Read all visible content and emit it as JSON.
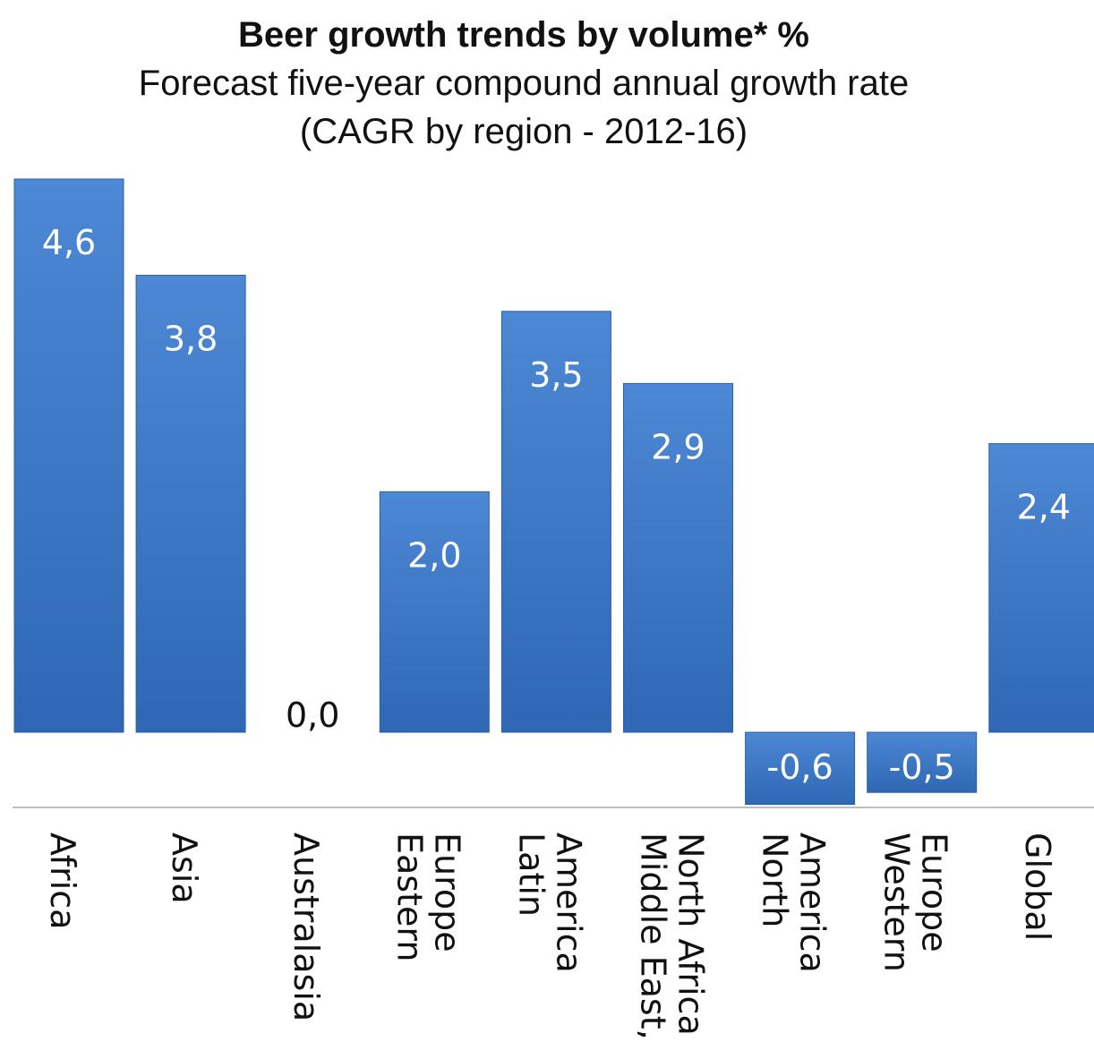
{
  "chart_data": {
    "type": "bar",
    "title": "Beer growth trends by volume* %",
    "subtitle": [
      "Forecast five-year compound annual growth rate",
      "(CAGR by region - 2012-16)"
    ],
    "categories": [
      [
        "Africa"
      ],
      [
        "Asia"
      ],
      [
        "Australasia"
      ],
      [
        "Eastern",
        "Europe"
      ],
      [
        "Latin",
        "America"
      ],
      [
        "Middle East,",
        "North Africa"
      ],
      [
        "North",
        "America"
      ],
      [
        "Western",
        "Europe"
      ],
      [
        "Global"
      ]
    ],
    "values": [
      4.6,
      3.8,
      0.0,
      2.0,
      3.5,
      2.9,
      -0.6,
      -0.5,
      2.4
    ],
    "value_labels": [
      "4,6",
      "3,8",
      "0,0",
      "2,0",
      "3,5",
      "2,9",
      "-0,6",
      "-0,5",
      "2,4"
    ],
    "ylim": [
      -0.6,
      4.6
    ],
    "grid": false,
    "legend": "none",
    "colors": {
      "bar": "#4a84d0",
      "bar_dark": "#2f67b4",
      "bar_edge": "#2a5fa8",
      "axis": "#bfbfbf"
    }
  }
}
